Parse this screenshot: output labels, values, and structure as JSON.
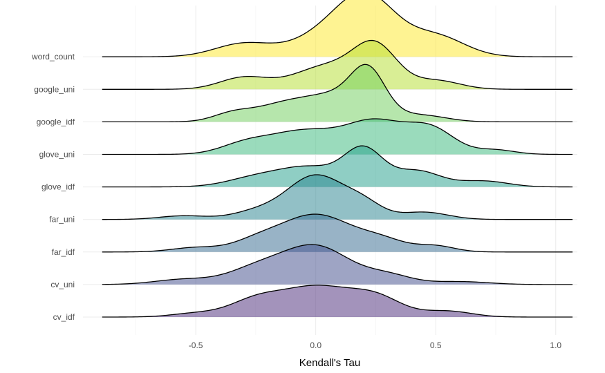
{
  "chart_data": {
    "type": "ridgeline",
    "title": "",
    "xlabel": "Kendall's Tau",
    "ylabel": "",
    "xlim": [
      -0.97,
      1.09
    ],
    "x_ticks": [
      -0.5,
      0.0,
      0.5,
      1.0
    ],
    "x_tick_labels": [
      "-0.5",
      "0.0",
      "0.5",
      "1.0"
    ],
    "x_minor_ticks": [
      -0.75,
      -0.25,
      0.25,
      0.75
    ],
    "grid": true,
    "legend": "none",
    "density_x_range": [
      -0.89,
      1.07
    ],
    "scale": 2.0,
    "categories": [
      "word_count",
      "google_uni",
      "google_idf",
      "glove_uni",
      "glove_idf",
      "far_uni",
      "far_idf",
      "cv_uni",
      "cv_idf"
    ],
    "series": [
      {
        "category": "word_count",
        "color": "#FDE725",
        "components": [
          [
            -0.3,
            0.12,
            0.9
          ],
          [
            0.05,
            0.14,
            1.5
          ],
          [
            0.22,
            0.12,
            3.6
          ],
          [
            0.5,
            0.12,
            1.4
          ]
        ]
      },
      {
        "category": "google_uni",
        "color": "#B4DE2C",
        "components": [
          [
            -0.3,
            0.1,
            0.8
          ],
          [
            0.05,
            0.14,
            1.6
          ],
          [
            0.25,
            0.09,
            2.7
          ],
          [
            0.5,
            0.1,
            0.6
          ]
        ]
      },
      {
        "category": "google_idf",
        "color": "#6DCD59",
        "components": [
          [
            -0.35,
            0.08,
            0.5
          ],
          [
            -0.15,
            0.12,
            1.0
          ],
          [
            0.1,
            0.14,
            1.8
          ],
          [
            0.22,
            0.07,
            2.6
          ],
          [
            0.45,
            0.1,
            0.4
          ]
        ]
      },
      {
        "category": "glove_uni",
        "color": "#35B779",
        "components": [
          [
            -0.3,
            0.1,
            0.6
          ],
          [
            -0.05,
            0.15,
            1.6
          ],
          [
            0.25,
            0.12,
            2.1
          ],
          [
            0.48,
            0.1,
            1.7
          ],
          [
            0.75,
            0.08,
            0.3
          ]
        ]
      },
      {
        "category": "glove_idf",
        "color": "#1F9E89",
        "components": [
          [
            -0.25,
            0.12,
            0.6
          ],
          [
            -0.02,
            0.13,
            1.3
          ],
          [
            0.2,
            0.08,
            2.4
          ],
          [
            0.42,
            0.1,
            1.1
          ],
          [
            0.7,
            0.1,
            0.4
          ]
        ]
      },
      {
        "category": "far_uni",
        "color": "#26828E",
        "components": [
          [
            -0.55,
            0.1,
            0.25
          ],
          [
            -0.25,
            0.1,
            0.5
          ],
          [
            0.0,
            0.12,
            3.0
          ],
          [
            0.2,
            0.08,
            0.9
          ],
          [
            0.45,
            0.1,
            0.5
          ]
        ]
      },
      {
        "category": "far_idf",
        "color": "#31688E",
        "components": [
          [
            -0.5,
            0.1,
            0.3
          ],
          [
            -0.25,
            0.1,
            0.6
          ],
          [
            0.0,
            0.15,
            2.55
          ],
          [
            0.28,
            0.1,
            0.7
          ],
          [
            0.5,
            0.08,
            0.4
          ]
        ]
      },
      {
        "category": "cv_uni",
        "color": "#3E4A89",
        "components": [
          [
            -0.55,
            0.12,
            0.35
          ],
          [
            -0.25,
            0.12,
            1.0
          ],
          [
            0.0,
            0.14,
            2.6
          ],
          [
            0.3,
            0.1,
            0.6
          ],
          [
            0.6,
            0.12,
            0.2
          ]
        ]
      },
      {
        "category": "cv_idf",
        "color": "#482878",
        "components": [
          [
            -0.5,
            0.1,
            0.25
          ],
          [
            -0.25,
            0.11,
            1.1
          ],
          [
            0.0,
            0.14,
            2.0
          ],
          [
            0.25,
            0.11,
            1.3
          ],
          [
            0.55,
            0.1,
            0.4
          ]
        ]
      }
    ]
  }
}
